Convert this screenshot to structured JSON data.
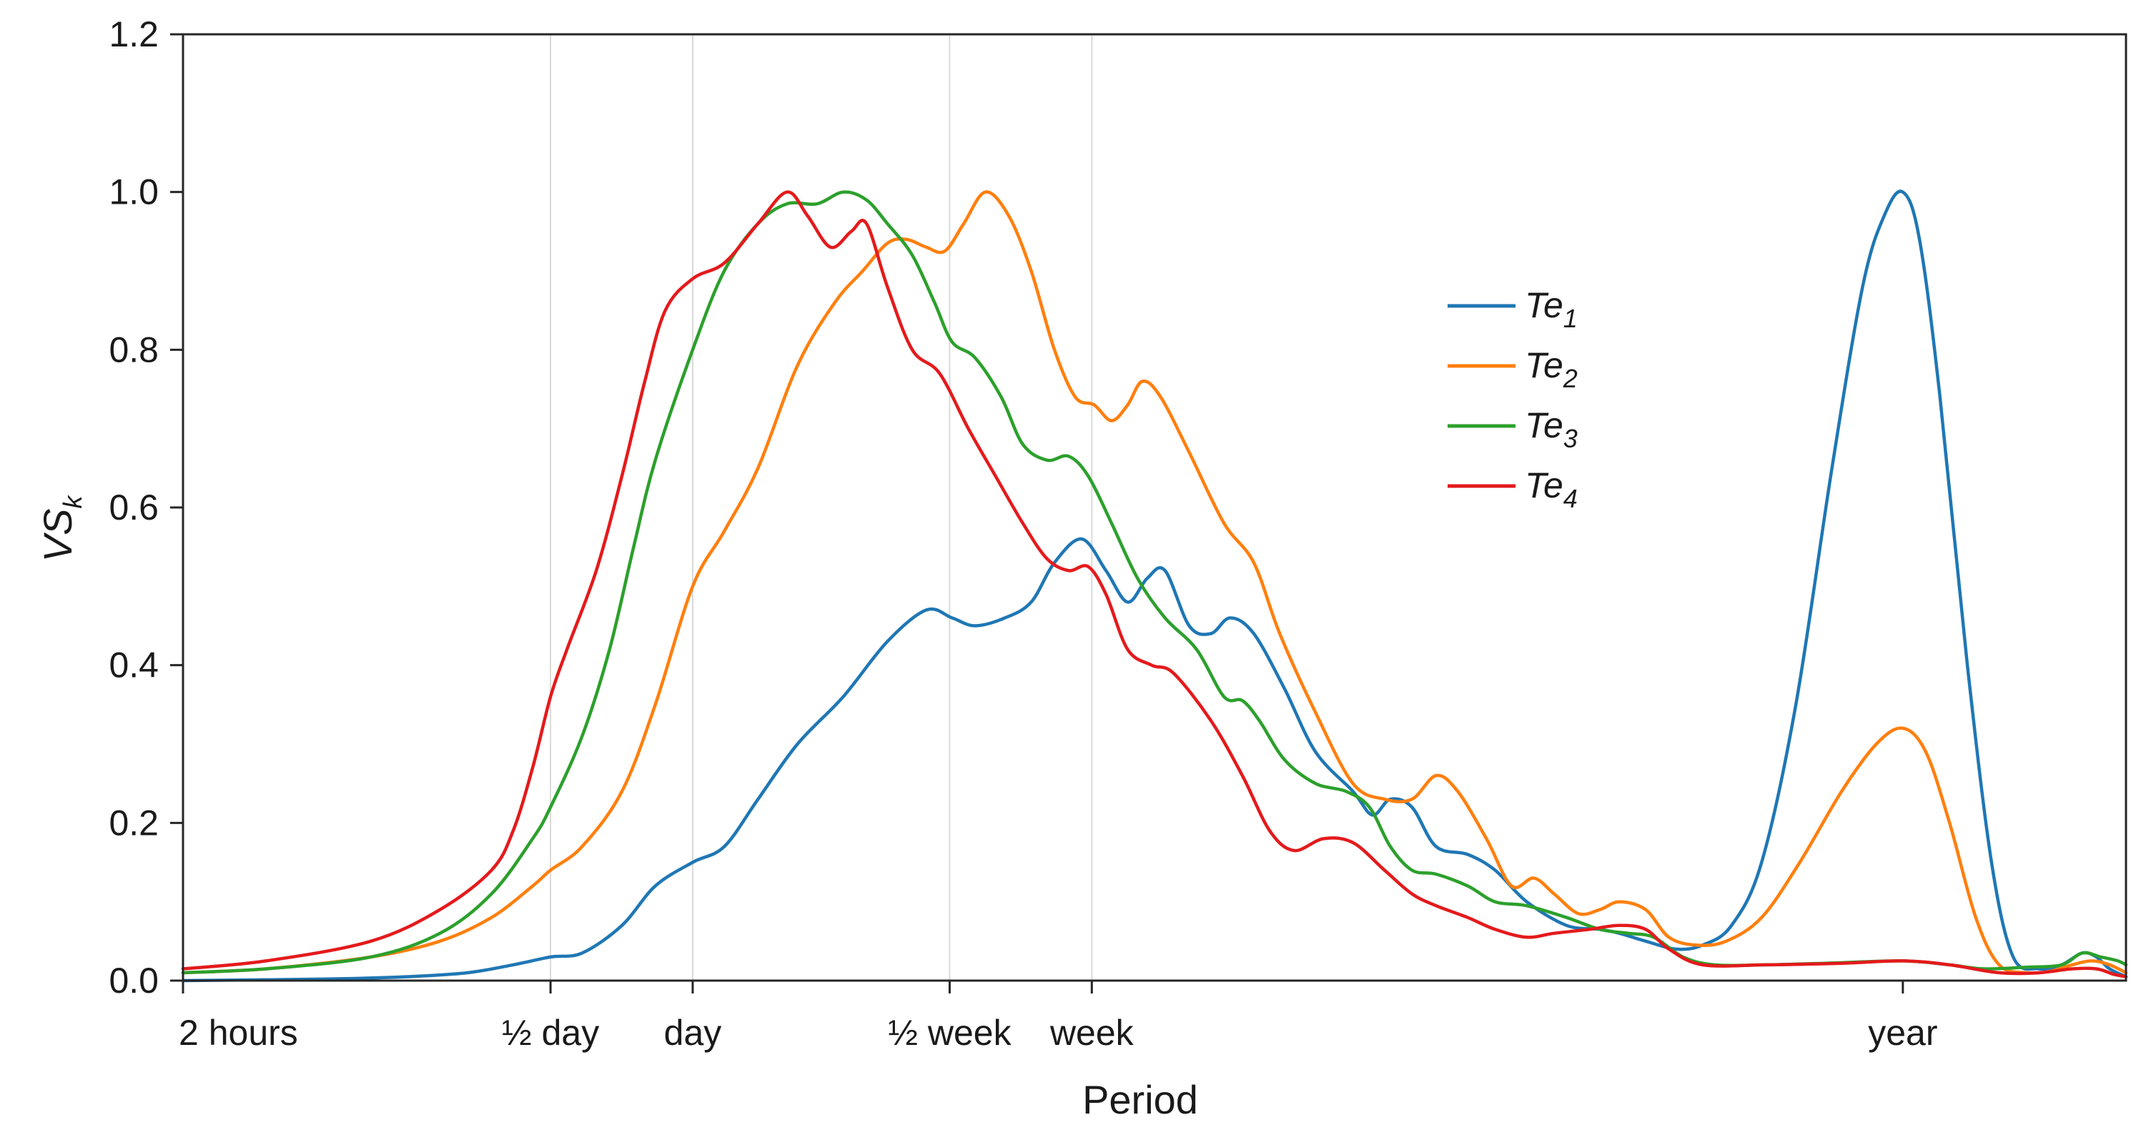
{
  "chart_data": {
    "type": "line",
    "title": "",
    "xlabel": "Period",
    "ylabel": "VS",
    "ylabel_subscript": "k",
    "x_scale": "log",
    "x_unit": "hours",
    "xlim": [
      2,
      26000
    ],
    "ylim": [
      0,
      1.2
    ],
    "y_ticks": [
      0.0,
      0.2,
      0.4,
      0.6,
      0.8,
      1.0,
      1.2
    ],
    "y_tick_labels": [
      "0.0",
      "0.2",
      "0.4",
      "0.6",
      "0.8",
      "1.0",
      "1.2"
    ],
    "x_ticks": [
      {
        "label": "2 hours",
        "value": 2
      },
      {
        "label": "½ day",
        "value": 12
      },
      {
        "label": "day",
        "value": 24
      },
      {
        "label": "½ week",
        "value": 84
      },
      {
        "label": "week",
        "value": 168
      },
      {
        "label": "year",
        "value": 8760
      }
    ],
    "vertical_gridlines_at": [
      12,
      24,
      84,
      168
    ],
    "legend_position": "upper-middle-right",
    "series": [
      {
        "name": "Te",
        "subscript": "1",
        "color": "#1f77b4",
        "points": [
          [
            2,
            0.0
          ],
          [
            4,
            0.002
          ],
          [
            6,
            0.005
          ],
          [
            8,
            0.01
          ],
          [
            10,
            0.02
          ],
          [
            12,
            0.03
          ],
          [
            14,
            0.035
          ],
          [
            17,
            0.07
          ],
          [
            20,
            0.12
          ],
          [
            24,
            0.15
          ],
          [
            28,
            0.17
          ],
          [
            33,
            0.23
          ],
          [
            40,
            0.3
          ],
          [
            50,
            0.36
          ],
          [
            62,
            0.43
          ],
          [
            75,
            0.47
          ],
          [
            85,
            0.46
          ],
          [
            95,
            0.45
          ],
          [
            110,
            0.46
          ],
          [
            125,
            0.48
          ],
          [
            140,
            0.53
          ],
          [
            160,
            0.56
          ],
          [
            180,
            0.52
          ],
          [
            200,
            0.48
          ],
          [
            220,
            0.51
          ],
          [
            240,
            0.52
          ],
          [
            270,
            0.45
          ],
          [
            300,
            0.44
          ],
          [
            330,
            0.46
          ],
          [
            370,
            0.44
          ],
          [
            430,
            0.37
          ],
          [
            500,
            0.29
          ],
          [
            600,
            0.24
          ],
          [
            660,
            0.21
          ],
          [
            720,
            0.23
          ],
          [
            800,
            0.22
          ],
          [
            900,
            0.17
          ],
          [
            1050,
            0.16
          ],
          [
            1200,
            0.14
          ],
          [
            1400,
            0.1
          ],
          [
            1700,
            0.07
          ],
          [
            2000,
            0.065
          ],
          [
            2200,
            0.06
          ],
          [
            2500,
            0.05
          ],
          [
            2900,
            0.04
          ],
          [
            3300,
            0.045
          ],
          [
            3800,
            0.07
          ],
          [
            4400,
            0.15
          ],
          [
            5200,
            0.35
          ],
          [
            6200,
            0.65
          ],
          [
            7200,
            0.88
          ],
          [
            8000,
            0.97
          ],
          [
            8760,
            1.0
          ],
          [
            9500,
            0.94
          ],
          [
            10500,
            0.74
          ],
          [
            12000,
            0.4
          ],
          [
            13500,
            0.15
          ],
          [
            15000,
            0.03
          ],
          [
            17000,
            0.015
          ],
          [
            19000,
            0.02
          ],
          [
            21000,
            0.035
          ],
          [
            22500,
            0.03
          ],
          [
            24000,
            0.015
          ],
          [
            26000,
            0.005
          ]
        ]
      },
      {
        "name": "Te",
        "subscript": "2",
        "color": "#ff7f0e",
        "points": [
          [
            2,
            0.01
          ],
          [
            3,
            0.015
          ],
          [
            5,
            0.03
          ],
          [
            7,
            0.05
          ],
          [
            9,
            0.08
          ],
          [
            11,
            0.12
          ],
          [
            12,
            0.14
          ],
          [
            14,
            0.17
          ],
          [
            17,
            0.24
          ],
          [
            20,
            0.35
          ],
          [
            24,
            0.5
          ],
          [
            28,
            0.57
          ],
          [
            33,
            0.65
          ],
          [
            40,
            0.78
          ],
          [
            48,
            0.86
          ],
          [
            55,
            0.9
          ],
          [
            62,
            0.935
          ],
          [
            68,
            0.94
          ],
          [
            75,
            0.93
          ],
          [
            82,
            0.925
          ],
          [
            90,
            0.96
          ],
          [
            100,
            1.0
          ],
          [
            112,
            0.97
          ],
          [
            125,
            0.9
          ],
          [
            140,
            0.8
          ],
          [
            155,
            0.74
          ],
          [
            170,
            0.73
          ],
          [
            185,
            0.71
          ],
          [
            200,
            0.73
          ],
          [
            215,
            0.76
          ],
          [
            235,
            0.74
          ],
          [
            270,
            0.67
          ],
          [
            320,
            0.58
          ],
          [
            370,
            0.53
          ],
          [
            420,
            0.44
          ],
          [
            500,
            0.34
          ],
          [
            600,
            0.25
          ],
          [
            700,
            0.23
          ],
          [
            800,
            0.23
          ],
          [
            900,
            0.26
          ],
          [
            1000,
            0.24
          ],
          [
            1150,
            0.18
          ],
          [
            1300,
            0.12
          ],
          [
            1450,
            0.13
          ],
          [
            1600,
            0.11
          ],
          [
            1800,
            0.085
          ],
          [
            2000,
            0.09
          ],
          [
            2200,
            0.1
          ],
          [
            2500,
            0.09
          ],
          [
            2800,
            0.055
          ],
          [
            3200,
            0.045
          ],
          [
            3700,
            0.05
          ],
          [
            4400,
            0.08
          ],
          [
            5300,
            0.15
          ],
          [
            6500,
            0.24
          ],
          [
            7700,
            0.3
          ],
          [
            8760,
            0.32
          ],
          [
            9800,
            0.29
          ],
          [
            11000,
            0.2
          ],
          [
            12500,
            0.08
          ],
          [
            14000,
            0.02
          ],
          [
            16000,
            0.01
          ],
          [
            18000,
            0.012
          ],
          [
            20000,
            0.02
          ],
          [
            22000,
            0.025
          ],
          [
            24000,
            0.02
          ],
          [
            26000,
            0.01
          ]
        ]
      },
      {
        "name": "Te",
        "subscript": "3",
        "color": "#2ca02c",
        "points": [
          [
            2,
            0.01
          ],
          [
            3,
            0.015
          ],
          [
            5,
            0.03
          ],
          [
            7,
            0.06
          ],
          [
            9,
            0.11
          ],
          [
            11,
            0.18
          ],
          [
            12,
            0.22
          ],
          [
            14,
            0.31
          ],
          [
            16,
            0.42
          ],
          [
            18,
            0.55
          ],
          [
            20,
            0.66
          ],
          [
            24,
            0.8
          ],
          [
            28,
            0.9
          ],
          [
            33,
            0.96
          ],
          [
            38,
            0.985
          ],
          [
            44,
            0.985
          ],
          [
            50,
            1.0
          ],
          [
            56,
            0.99
          ],
          [
            62,
            0.96
          ],
          [
            70,
            0.92
          ],
          [
            78,
            0.86
          ],
          [
            85,
            0.81
          ],
          [
            95,
            0.79
          ],
          [
            108,
            0.74
          ],
          [
            120,
            0.68
          ],
          [
            135,
            0.66
          ],
          [
            150,
            0.665
          ],
          [
            165,
            0.64
          ],
          [
            185,
            0.58
          ],
          [
            210,
            0.51
          ],
          [
            240,
            0.46
          ],
          [
            280,
            0.42
          ],
          [
            320,
            0.36
          ],
          [
            350,
            0.355
          ],
          [
            380,
            0.33
          ],
          [
            430,
            0.28
          ],
          [
            500,
            0.25
          ],
          [
            580,
            0.24
          ],
          [
            650,
            0.22
          ],
          [
            720,
            0.17
          ],
          [
            800,
            0.14
          ],
          [
            900,
            0.135
          ],
          [
            1050,
            0.12
          ],
          [
            1200,
            0.1
          ],
          [
            1400,
            0.095
          ],
          [
            1700,
            0.08
          ],
          [
            2000,
            0.065
          ],
          [
            2300,
            0.06
          ],
          [
            2600,
            0.055
          ],
          [
            3000,
            0.03
          ],
          [
            3500,
            0.02
          ],
          [
            4500,
            0.02
          ],
          [
            6000,
            0.022
          ],
          [
            8760,
            0.025
          ],
          [
            11000,
            0.02
          ],
          [
            13000,
            0.015
          ],
          [
            16000,
            0.017
          ],
          [
            19000,
            0.02
          ],
          [
            21000,
            0.035
          ],
          [
            23000,
            0.03
          ],
          [
            25000,
            0.025
          ],
          [
            26000,
            0.02
          ]
        ]
      },
      {
        "name": "Te",
        "subscript": "4",
        "color": "#e41a1c",
        "points": [
          [
            2,
            0.015
          ],
          [
            3,
            0.025
          ],
          [
            5,
            0.05
          ],
          [
            7,
            0.09
          ],
          [
            9,
            0.14
          ],
          [
            10,
            0.19
          ],
          [
            11,
            0.27
          ],
          [
            12,
            0.36
          ],
          [
            13,
            0.42
          ],
          [
            15,
            0.52
          ],
          [
            17,
            0.64
          ],
          [
            19,
            0.76
          ],
          [
            21,
            0.85
          ],
          [
            24,
            0.89
          ],
          [
            28,
            0.91
          ],
          [
            33,
            0.96
          ],
          [
            38,
            1.0
          ],
          [
            42,
            0.97
          ],
          [
            47,
            0.93
          ],
          [
            52,
            0.95
          ],
          [
            56,
            0.96
          ],
          [
            62,
            0.88
          ],
          [
            70,
            0.8
          ],
          [
            80,
            0.77
          ],
          [
            92,
            0.7
          ],
          [
            105,
            0.64
          ],
          [
            120,
            0.58
          ],
          [
            135,
            0.535
          ],
          [
            150,
            0.52
          ],
          [
            165,
            0.525
          ],
          [
            180,
            0.49
          ],
          [
            200,
            0.42
          ],
          [
            225,
            0.4
          ],
          [
            250,
            0.39
          ],
          [
            300,
            0.33
          ],
          [
            350,
            0.26
          ],
          [
            400,
            0.19
          ],
          [
            450,
            0.165
          ],
          [
            520,
            0.18
          ],
          [
            600,
            0.175
          ],
          [
            700,
            0.14
          ],
          [
            800,
            0.11
          ],
          [
            900,
            0.095
          ],
          [
            1050,
            0.08
          ],
          [
            1200,
            0.065
          ],
          [
            1400,
            0.055
          ],
          [
            1600,
            0.06
          ],
          [
            1900,
            0.065
          ],
          [
            2200,
            0.07
          ],
          [
            2500,
            0.065
          ],
          [
            2800,
            0.04
          ],
          [
            3300,
            0.02
          ],
          [
            4500,
            0.02
          ],
          [
            6500,
            0.022
          ],
          [
            8760,
            0.025
          ],
          [
            11000,
            0.02
          ],
          [
            14000,
            0.01
          ],
          [
            17000,
            0.01
          ],
          [
            20000,
            0.015
          ],
          [
            22500,
            0.015
          ],
          [
            24500,
            0.008
          ],
          [
            26000,
            0.005
          ]
        ]
      }
    ]
  }
}
